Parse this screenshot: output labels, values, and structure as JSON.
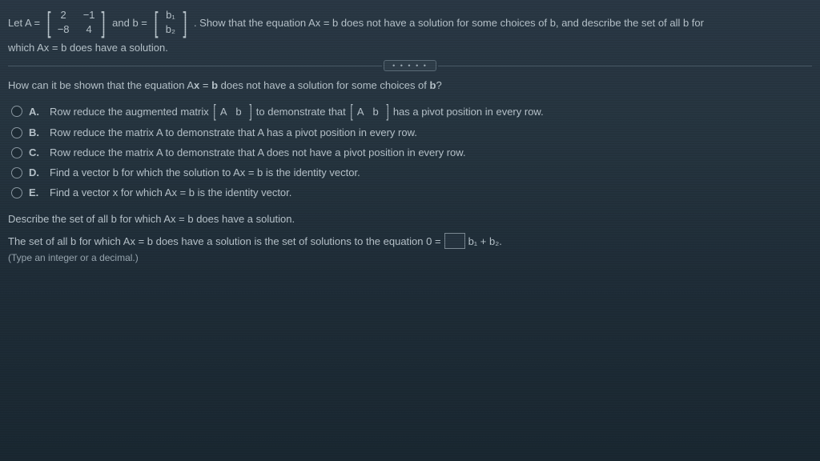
{
  "problem": {
    "let_a": "Let A =",
    "matrix_a": {
      "r1c1": "2",
      "r1c2": "−1",
      "r2c1": "−8",
      "r2c2": "4"
    },
    "and_b": "and b =",
    "matrix_b": {
      "r1": "b₁",
      "r2": "b₂"
    },
    "statement_part1": ". Show that the equation Ax = b does not have a solution for some choices of b, and describe the set of all b for",
    "statement_line2": "which Ax = b does have a solution."
  },
  "dots_label": "• • • • •",
  "question": "How can it be shown that the equation Ax = b does not have a solution for some choices of b?",
  "choices": {
    "a": {
      "label": "A.",
      "pre": "Row reduce the augmented matrix",
      "m1": "A  b",
      "mid": "to demonstrate that",
      "m2": "A  b",
      "post": "has a pivot position in every row."
    },
    "b": {
      "label": "B.",
      "text": "Row reduce the matrix A to demonstrate that A has a pivot position in every row."
    },
    "c": {
      "label": "C.",
      "text": "Row reduce the matrix A to demonstrate that A does not have a pivot position in every row."
    },
    "d": {
      "label": "D.",
      "text": "Find a vector b for which the solution to Ax = b is the identity vector."
    },
    "e": {
      "label": "E.",
      "text": "Find a vector x for which Ax = b is the identity vector."
    }
  },
  "describe": "Describe the set of all b for which Ax = b does have a solution.",
  "answer": {
    "pre": "The set of all b for which Ax = b does have a solution is the set of solutions to the equation 0 =",
    "term": "b₁ + b₂.",
    "hint": "(Type an integer or a decimal.)"
  },
  "colors": {
    "text": "#b8c4cc",
    "border": "#4a5a66"
  }
}
